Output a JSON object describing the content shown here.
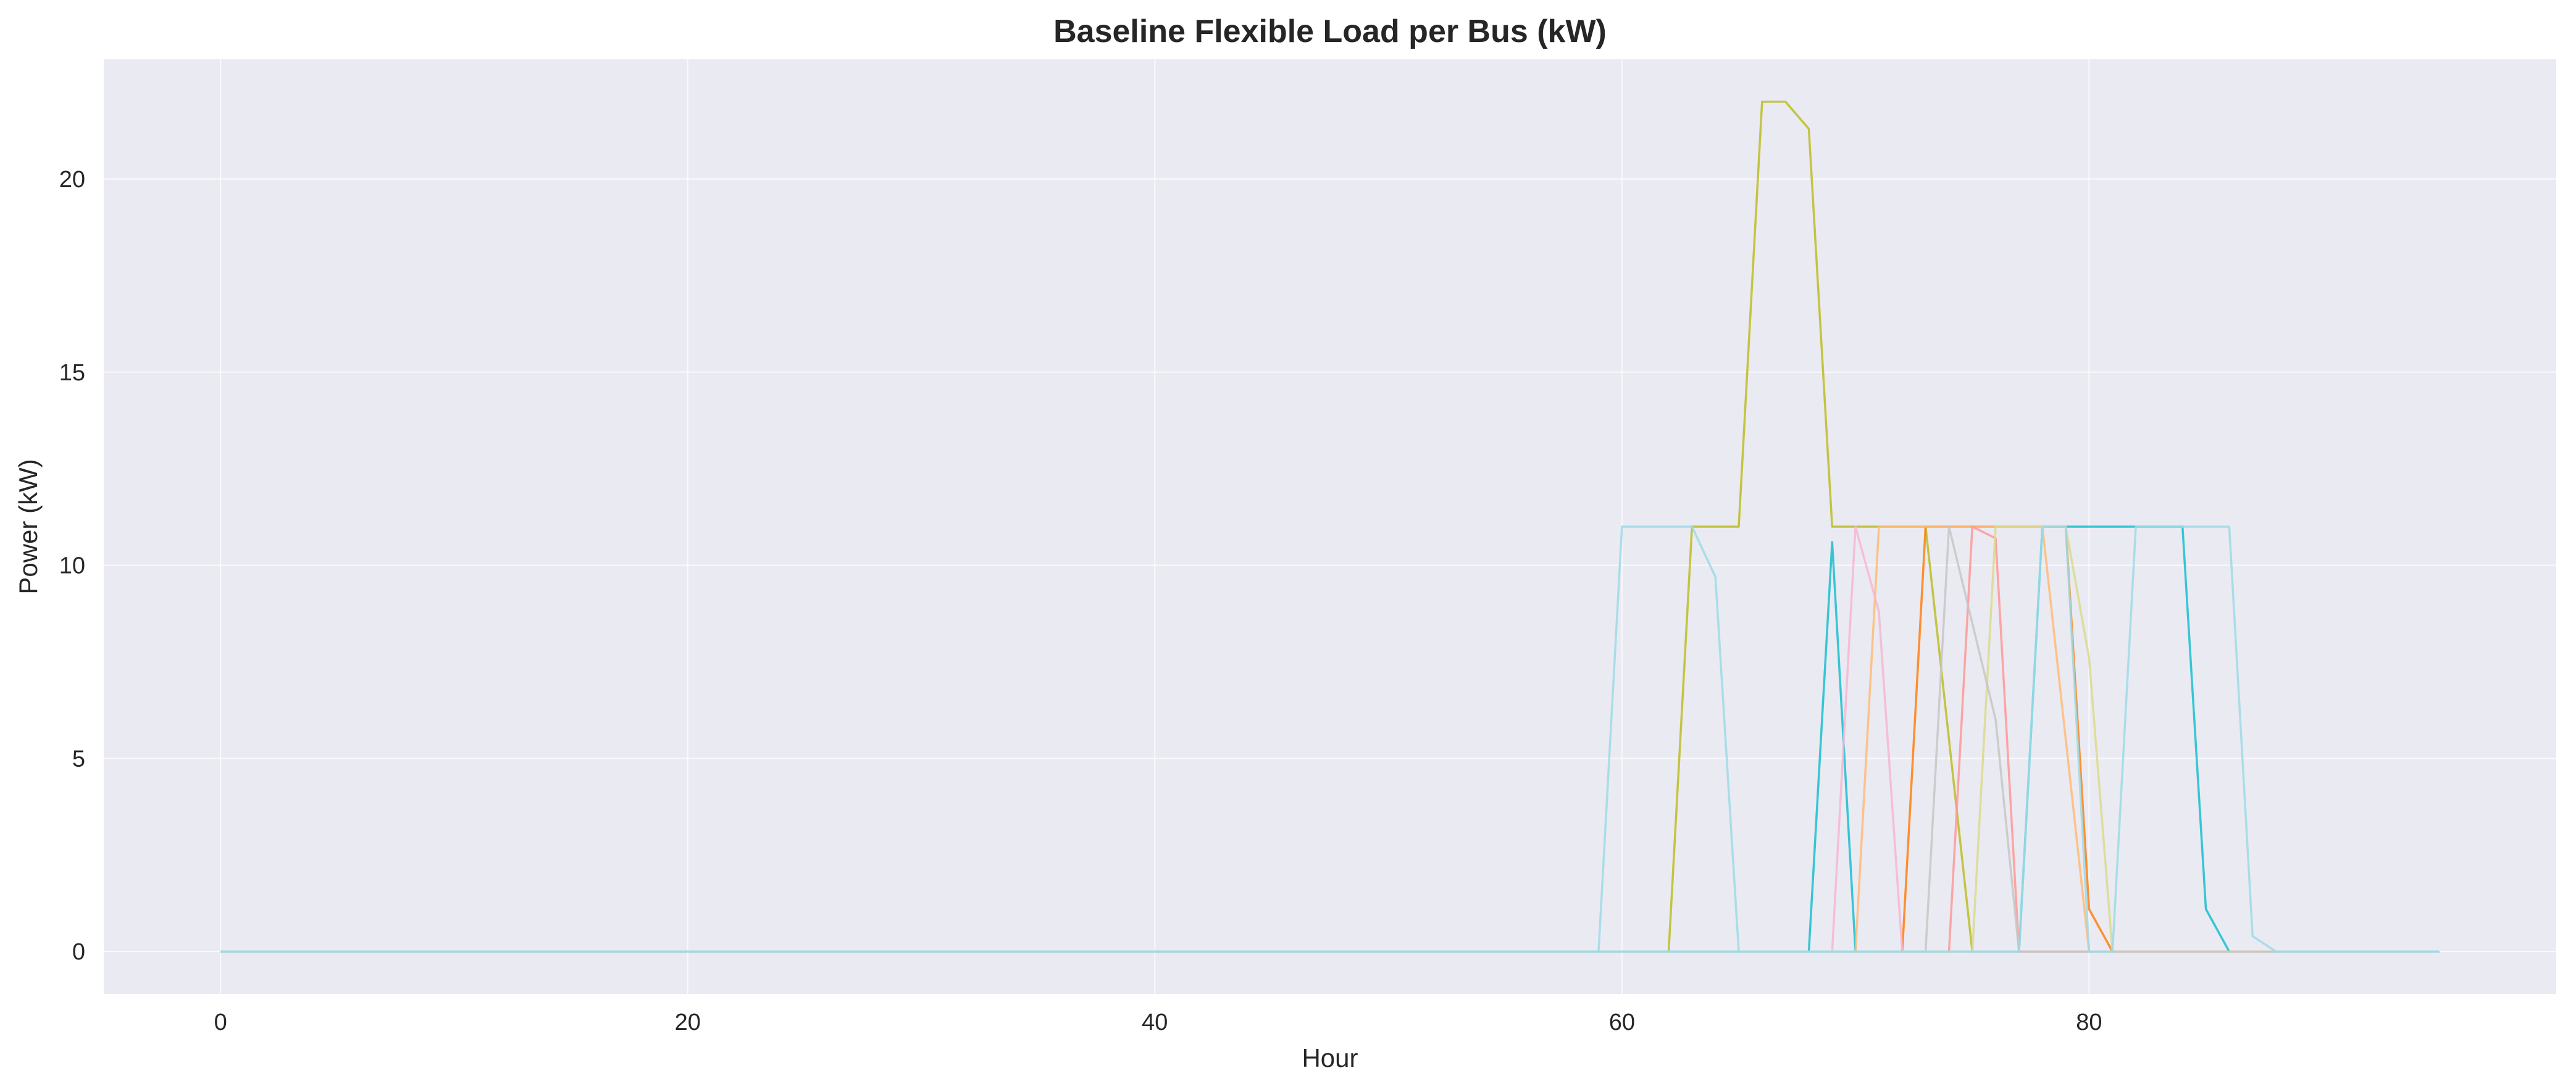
{
  "chart_data": {
    "type": "line",
    "title": "Baseline Flexible Load per Bus (kW)",
    "xlabel": "Hour",
    "ylabel": "Power (kW)",
    "xlim": [
      -5,
      100
    ],
    "ylim": [
      -1.1,
      23.1
    ],
    "xticks": [
      0,
      20,
      40,
      60,
      80
    ],
    "yticks": [
      0,
      5,
      10,
      15,
      20
    ],
    "grid": true,
    "background": "#eaeaf2",
    "series": [
      {
        "color": "#bcbd22",
        "points": [
          [
            0,
            0
          ],
          [
            62,
            0
          ],
          [
            63,
            11
          ],
          [
            65,
            11
          ],
          [
            66,
            22
          ],
          [
            67,
            22
          ],
          [
            68,
            21.3
          ],
          [
            69,
            11
          ],
          [
            73,
            11
          ],
          [
            75,
            0
          ],
          [
            95,
            0
          ]
        ]
      },
      {
        "color": "#9edae5",
        "points": [
          [
            0,
            0
          ],
          [
            59,
            0
          ],
          [
            60,
            11
          ],
          [
            63,
            11
          ],
          [
            64,
            9.7
          ],
          [
            65,
            0
          ],
          [
            95,
            0
          ]
        ]
      },
      {
        "color": "#17becf",
        "points": [
          [
            0,
            0
          ],
          [
            68,
            0
          ],
          [
            69,
            10.6
          ],
          [
            70,
            0
          ],
          [
            77,
            0
          ],
          [
            78,
            11
          ],
          [
            84,
            11
          ],
          [
            85,
            1.1
          ],
          [
            86,
            0
          ],
          [
            95,
            0
          ]
        ]
      },
      {
        "color": "#ff7f0e",
        "points": [
          [
            0,
            0
          ],
          [
            72,
            0
          ],
          [
            73,
            11
          ],
          [
            79,
            11
          ],
          [
            80,
            1.1
          ],
          [
            81,
            0
          ],
          [
            95,
            0
          ]
        ]
      },
      {
        "color": "#ffbb78",
        "points": [
          [
            0,
            0
          ],
          [
            70,
            0
          ],
          [
            71,
            11
          ],
          [
            77,
            11
          ],
          [
            78,
            11
          ],
          [
            80,
            0
          ],
          [
            95,
            0
          ]
        ]
      },
      {
        "color": "#f7b6d2",
        "points": [
          [
            0,
            0
          ],
          [
            69,
            0
          ],
          [
            70,
            11
          ],
          [
            71,
            8.8
          ],
          [
            72,
            0
          ],
          [
            95,
            0
          ]
        ]
      },
      {
        "color": "#ff9896",
        "points": [
          [
            0,
            0
          ],
          [
            74,
            0
          ],
          [
            75,
            11
          ],
          [
            76,
            10.7
          ],
          [
            77,
            0
          ],
          [
            95,
            0
          ]
        ]
      },
      {
        "color": "#dbdb8d",
        "points": [
          [
            0,
            0
          ],
          [
            75,
            0
          ],
          [
            76,
            11
          ],
          [
            79,
            11
          ],
          [
            80,
            7.6
          ],
          [
            81,
            0
          ],
          [
            95,
            0
          ]
        ]
      },
      {
        "color": "#c7c7c7",
        "points": [
          [
            0,
            0
          ],
          [
            73,
            0
          ],
          [
            74,
            11
          ],
          [
            76,
            6
          ],
          [
            77,
            0
          ],
          [
            95,
            0
          ]
        ]
      },
      {
        "color": "#9edae5",
        "points": [
          [
            0,
            0
          ],
          [
            77,
            0
          ],
          [
            78,
            11
          ],
          [
            79,
            11
          ],
          [
            80,
            0
          ],
          [
            81,
            0
          ],
          [
            82,
            11
          ],
          [
            86,
            11
          ],
          [
            87,
            0.4
          ],
          [
            88,
            0
          ],
          [
            95,
            0
          ]
        ]
      }
    ]
  }
}
